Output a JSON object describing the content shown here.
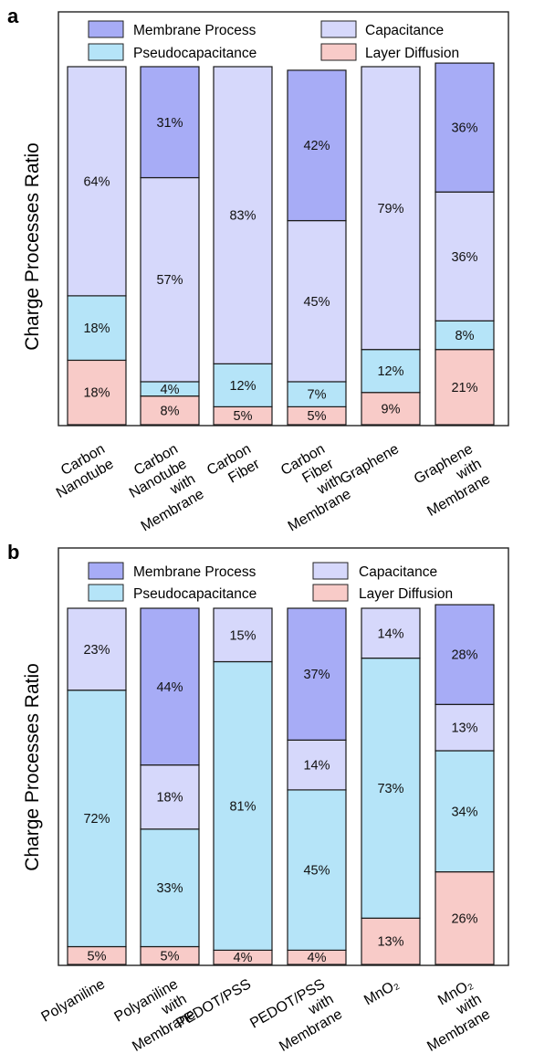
{
  "series_order": [
    "Layer Diffusion",
    "Pseudocapacitance",
    "Capacitance",
    "Membrane Process"
  ],
  "colors": {
    "Membrane Process": "#a7acf6",
    "Capacitance": "#d6d8fb",
    "Pseudocapacitance": "#b5e4f8",
    "Layer Diffusion": "#f8cbc8",
    "frame": "#222222"
  },
  "legend": {
    "membrane": "Membrane Process",
    "capacitance": "Capacitance",
    "pseudo": "Pseudocapacitance",
    "diffusion": "Layer Diffusion"
  },
  "chart_data": [
    {
      "type": "bar",
      "stacked": true,
      "panel_label": "a",
      "ylabel": "Charge Processes Ratio",
      "legend_position": "top",
      "categories": [
        [
          "Carbon",
          "Nanotube"
        ],
        [
          "Carbon",
          "Nanotube",
          "with",
          "Membrane"
        ],
        [
          "Carbon",
          "Fiber"
        ],
        [
          "Carbon",
          "Fiber",
          "with",
          "Membrane"
        ],
        [
          "Graphene"
        ],
        [
          "Graphene",
          "with",
          "Membrane"
        ]
      ],
      "series": [
        {
          "name": "Layer Diffusion",
          "values": [
            18,
            8,
            5,
            5,
            9,
            21
          ]
        },
        {
          "name": "Pseudocapacitance",
          "values": [
            18,
            4,
            12,
            7,
            12,
            8
          ]
        },
        {
          "name": "Capacitance",
          "values": [
            64,
            57,
            83,
            45,
            79,
            36
          ]
        },
        {
          "name": "Membrane Process",
          "values": [
            0,
            31,
            0,
            42,
            0,
            36
          ]
        }
      ],
      "ylim": [
        0,
        100
      ]
    },
    {
      "type": "bar",
      "stacked": true,
      "panel_label": "b",
      "ylabel": "Charge Processes Ratio",
      "legend_position": "top",
      "categories": [
        [
          "Polyaniline"
        ],
        [
          "Polyaniline",
          "with",
          "Membrane"
        ],
        [
          "PEDOT/PSS"
        ],
        [
          "PEDOT/PSS",
          "with",
          "Membrane"
        ],
        [
          "MnO₂"
        ],
        [
          "MnO₂",
          "with",
          "Membrane"
        ]
      ],
      "series": [
        {
          "name": "Layer Diffusion",
          "values": [
            5,
            5,
            4,
            4,
            13,
            26
          ]
        },
        {
          "name": "Pseudocapacitance",
          "values": [
            72,
            33,
            81,
            45,
            73,
            34
          ]
        },
        {
          "name": "Capacitance",
          "values": [
            23,
            18,
            15,
            14,
            14,
            13
          ]
        },
        {
          "name": "Membrane Process",
          "values": [
            0,
            44,
            0,
            37,
            0,
            28
          ]
        }
      ],
      "ylim": [
        0,
        100
      ]
    }
  ]
}
